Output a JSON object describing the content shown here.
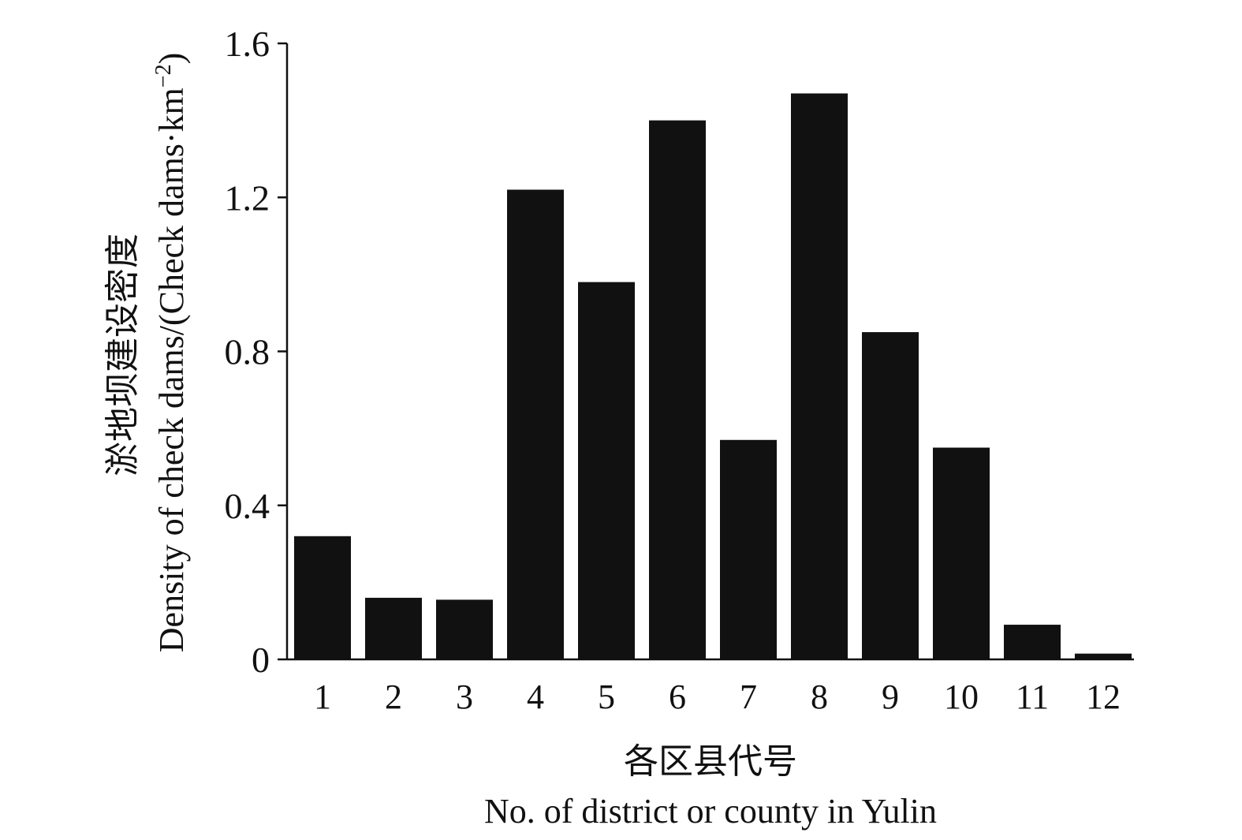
{
  "chart_data": {
    "type": "bar",
    "categories": [
      "1",
      "2",
      "3",
      "4",
      "5",
      "6",
      "7",
      "8",
      "9",
      "10",
      "11",
      "12"
    ],
    "values": [
      0.32,
      0.16,
      0.155,
      1.22,
      0.98,
      1.4,
      0.57,
      1.47,
      0.85,
      0.55,
      0.09,
      0.015
    ],
    "ylim": [
      0,
      1.6
    ],
    "yticks": [
      0,
      0.4,
      0.8,
      1.2,
      1.6
    ],
    "ytick_labels": [
      "0",
      "0.4",
      "0.8",
      "1.2",
      "1.6"
    ],
    "xlabel_cn": "各区县代号",
    "xlabel_en": "No. of district or county in Yulin",
    "ylabel_cn": "淤地坝建设密度",
    "ylabel_en": "Density of check dams/(Check dams·km",
    "ylabel_sup": "−2",
    "ylabel_close": ")",
    "grid": false,
    "legend": "none",
    "bar_color": "#111111"
  }
}
